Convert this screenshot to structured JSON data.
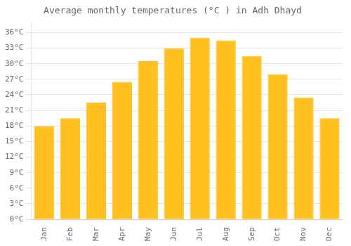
{
  "chart_data": {
    "type": "bar",
    "title": "Average monthly temperatures (°C ) in Adh Dhayd",
    "categories": [
      "Jan",
      "Feb",
      "Mar",
      "Apr",
      "May",
      "Jun",
      "Jul",
      "Aug",
      "Sep",
      "Oct",
      "Nov",
      "Dec"
    ],
    "values": [
      18.0,
      19.5,
      22.5,
      26.5,
      30.5,
      33.0,
      35.0,
      34.5,
      31.5,
      28.0,
      23.5,
      19.5
    ],
    "color": "#FFC020",
    "ylim": [
      0,
      38
    ],
    "yticks": [
      {
        "value": 0,
        "label": "0°C"
      },
      {
        "value": 3,
        "label": "3°C"
      },
      {
        "value": 6,
        "label": "6°C"
      },
      {
        "value": 9,
        "label": "9°C"
      },
      {
        "value": 12,
        "label": "12°C"
      },
      {
        "value": 15,
        "label": "15°C"
      },
      {
        "value": 18,
        "label": "18°C"
      },
      {
        "value": 21,
        "label": "21°C"
      },
      {
        "value": 24,
        "label": "24°C"
      },
      {
        "value": 27,
        "label": "27°C"
      },
      {
        "value": 30,
        "label": "30°C"
      },
      {
        "value": 33,
        "label": "33°C"
      },
      {
        "value": 36,
        "label": "36°C"
      }
    ],
    "grid": true
  }
}
